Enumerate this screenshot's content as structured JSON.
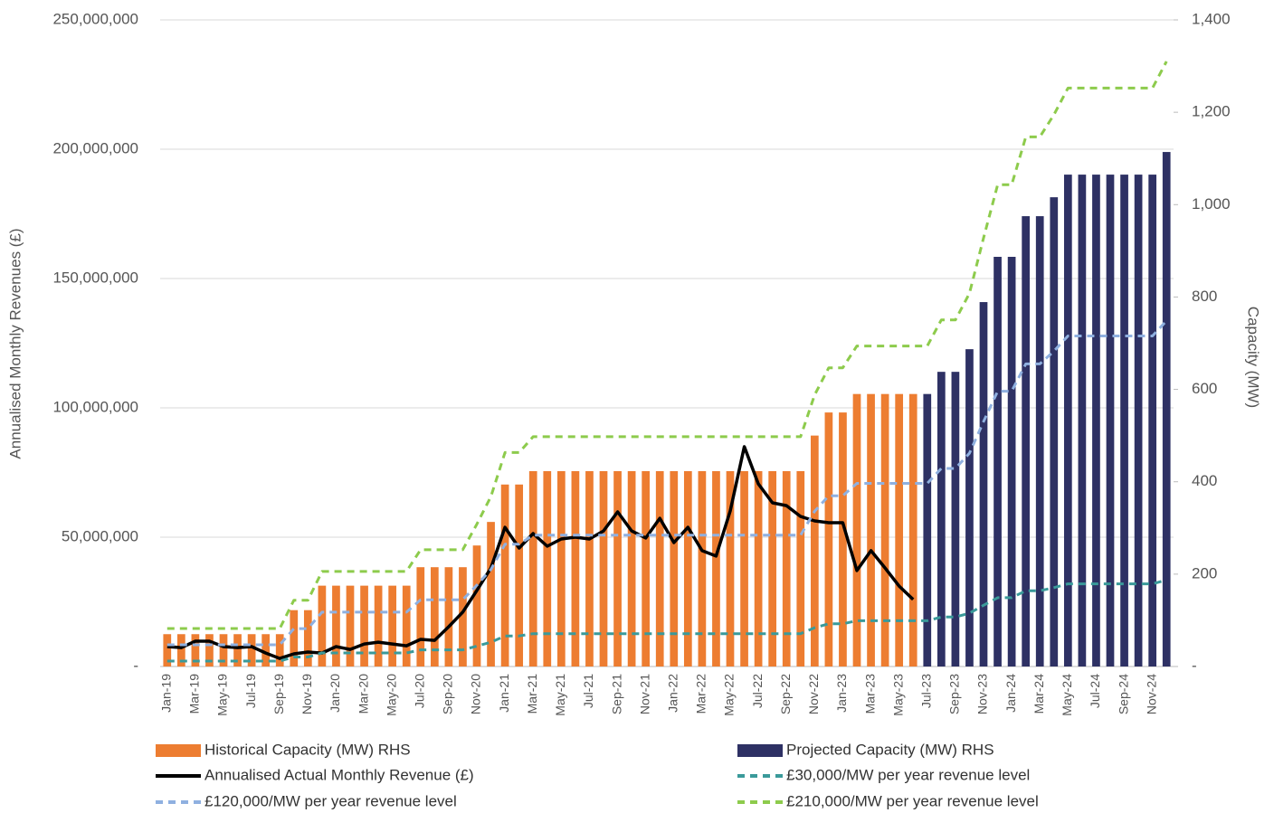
{
  "chart_data": {
    "type": "combo",
    "y_label": "Annualised Monthly Revenues (£)",
    "y2_label": "Capacity (MW)",
    "categories": [
      "Jan-19",
      null,
      "Mar-19",
      null,
      "May-19",
      null,
      "Jul-19",
      null,
      "Sep-19",
      null,
      "Nov-19",
      null,
      "Jan-20",
      null,
      "Mar-20",
      null,
      "May-20",
      null,
      "Jul-20",
      null,
      "Sep-20",
      null,
      "Nov-20",
      null,
      "Jan-21",
      null,
      "Mar-21",
      null,
      "May-21",
      null,
      "Jul-21",
      null,
      "Sep-21",
      null,
      "Nov-21",
      null,
      "Jan-22",
      null,
      "Mar-22",
      null,
      "May-22",
      null,
      "Jul-22",
      null,
      "Sep-22",
      null,
      "Nov-22",
      null,
      "Jan-23",
      null,
      "Mar-23",
      null,
      "May-23",
      null,
      "Jul-23",
      null,
      "Sep-23",
      null,
      "Nov-23",
      null,
      "Jan-24",
      null,
      "Mar-24",
      null,
      "May-24",
      null,
      "Jul-24",
      null,
      "Sep-24",
      null,
      "Nov-24",
      null
    ],
    "ylim": [
      0,
      250000000
    ],
    "yticks": [
      {
        "value": 0,
        "label": "-"
      },
      {
        "value": 50000000,
        "label": "50,000,000"
      },
      {
        "value": 100000000,
        "label": "100,000,000"
      },
      {
        "value": 150000000,
        "label": "150,000,000"
      },
      {
        "value": 200000000,
        "label": "200,000,000"
      },
      {
        "value": 250000000,
        "label": "250,000,000"
      }
    ],
    "y2lim": [
      0,
      1400
    ],
    "y2ticks": [
      {
        "value": 0,
        "label": "-"
      },
      200,
      400,
      600,
      800,
      {
        "value": 1000,
        "label": "1,000"
      },
      {
        "value": 1200,
        "label": "1,200"
      },
      {
        "value": 1400,
        "label": "1,400"
      }
    ],
    "grid": true,
    "legend": "bottom",
    "series": [
      {
        "name": "Historical Capacity (MW) RHS",
        "type": "bar",
        "axis": "y2",
        "color": "#ED7D31",
        "values": [
          70,
          70,
          70,
          70,
          70,
          70,
          70,
          70,
          70,
          122,
          122,
          175,
          175,
          175,
          175,
          175,
          175,
          175,
          215,
          215,
          215,
          215,
          262,
          313,
          394,
          394,
          423,
          423,
          423,
          423,
          423,
          423,
          423,
          423,
          423,
          423,
          423,
          423,
          423,
          423,
          423,
          423,
          423,
          423,
          423,
          423,
          500,
          550,
          550,
          590,
          590,
          590,
          590,
          590,
          null,
          null,
          null,
          null,
          null,
          null,
          null,
          null,
          null,
          null,
          null,
          null,
          null,
          null,
          null,
          null,
          null,
          null
        ]
      },
      {
        "name": "Projected Capacity (MW) RHS",
        "type": "bar",
        "axis": "y2",
        "color": "#2E3164",
        "values": [
          null,
          null,
          null,
          null,
          null,
          null,
          null,
          null,
          null,
          null,
          null,
          null,
          null,
          null,
          null,
          null,
          null,
          null,
          null,
          null,
          null,
          null,
          null,
          null,
          null,
          null,
          null,
          null,
          null,
          null,
          null,
          null,
          null,
          null,
          null,
          null,
          null,
          null,
          null,
          null,
          null,
          null,
          null,
          null,
          null,
          null,
          null,
          null,
          null,
          null,
          null,
          null,
          null,
          null,
          590,
          638,
          638,
          687,
          789,
          887,
          887,
          975,
          975,
          1016,
          1065,
          1065,
          1065,
          1065,
          1065,
          1065,
          1065,
          1114
        ]
      },
      {
        "name": "Annualised Actual Monthly Revenue (£)",
        "type": "line",
        "color": "#000000",
        "dash": false,
        "values": [
          7700000,
          7300000,
          9800000,
          9800000,
          7700000,
          7300000,
          7700000,
          5200000,
          3100000,
          4900000,
          5600000,
          5200000,
          7700000,
          6600000,
          8700000,
          9400000,
          8700000,
          8000000,
          10500000,
          10100000,
          15400000,
          21000000,
          29400000,
          38100000,
          53800000,
          45800000,
          51400000,
          46500000,
          49300000,
          50000000,
          49300000,
          52400000,
          59800000,
          52400000,
          49700000,
          57300000,
          47900000,
          53800000,
          44800000,
          42700000,
          60100000,
          85000000,
          70600000,
          63300000,
          62200000,
          58000000,
          56300000,
          55600000,
          55600000,
          37100000,
          44800000,
          38100000,
          31100000,
          25900000,
          null,
          null,
          null,
          null,
          null,
          null,
          null,
          null,
          null,
          null,
          null,
          null,
          null,
          null,
          null,
          null,
          null,
          null
        ]
      },
      {
        "name": "£30,000/MW per year revenue level",
        "type": "line",
        "color": "#3A9A9A",
        "dash": true,
        "values": [
          2100000,
          2100000,
          2100000,
          2100000,
          2100000,
          2100000,
          2100000,
          2100000,
          2100000,
          3660000,
          3660000,
          5250000,
          5250000,
          5250000,
          5250000,
          5250000,
          5250000,
          5250000,
          6450000,
          6450000,
          6450000,
          6450000,
          7860000,
          9390000,
          11820000,
          11820000,
          12690000,
          12690000,
          12690000,
          12690000,
          12690000,
          12690000,
          12690000,
          12690000,
          12690000,
          12690000,
          12690000,
          12690000,
          12690000,
          12690000,
          12690000,
          12690000,
          12690000,
          12690000,
          12690000,
          12690000,
          15000000,
          16500000,
          16500000,
          17700000,
          17700000,
          17700000,
          17700000,
          17700000,
          17700000,
          19140000,
          19140000,
          20610000,
          23670000,
          26610000,
          26610000,
          29250000,
          29250000,
          30480000,
          31950000,
          31950000,
          31950000,
          31950000,
          31950000,
          31950000,
          31950000,
          33420000
        ]
      },
      {
        "name": "£120,000/MW per year revenue level",
        "type": "line",
        "color": "#8FB0E0",
        "dash": true,
        "values": [
          8400000,
          8400000,
          8400000,
          8400000,
          8400000,
          8400000,
          8400000,
          8400000,
          8400000,
          14640000,
          14640000,
          21000000,
          21000000,
          21000000,
          21000000,
          21000000,
          21000000,
          21000000,
          25800000,
          25800000,
          25800000,
          25800000,
          31440000,
          37560000,
          47280000,
          47280000,
          50760000,
          50760000,
          50760000,
          50760000,
          50760000,
          50760000,
          50760000,
          50760000,
          50760000,
          50760000,
          50760000,
          50760000,
          50760000,
          50760000,
          50760000,
          50760000,
          50760000,
          50760000,
          50760000,
          50760000,
          60000000,
          66000000,
          66000000,
          70800000,
          70800000,
          70800000,
          70800000,
          70800000,
          70800000,
          76560000,
          76560000,
          82440000,
          94680000,
          106440000,
          106440000,
          117000000,
          117000000,
          121920000,
          127800000,
          127800000,
          127800000,
          127800000,
          127800000,
          127800000,
          127800000,
          133680000
        ]
      },
      {
        "name": "£210,000/MW per year revenue level",
        "type": "line",
        "color": "#8DCB4C",
        "dash": true,
        "values": [
          14700000,
          14700000,
          14700000,
          14700000,
          14700000,
          14700000,
          14700000,
          14700000,
          14700000,
          25620000,
          25620000,
          36750000,
          36750000,
          36750000,
          36750000,
          36750000,
          36750000,
          36750000,
          45150000,
          45150000,
          45150000,
          45150000,
          55020000,
          65730000,
          82740000,
          82740000,
          88830000,
          88830000,
          88830000,
          88830000,
          88830000,
          88830000,
          88830000,
          88830000,
          88830000,
          88830000,
          88830000,
          88830000,
          88830000,
          88830000,
          88830000,
          88830000,
          88830000,
          88830000,
          88830000,
          88830000,
          105000000,
          115500000,
          115500000,
          123900000,
          123900000,
          123900000,
          123900000,
          123900000,
          123900000,
          133980000,
          133980000,
          144270000,
          165690000,
          186270000,
          186270000,
          204750000,
          204750000,
          213360000,
          223650000,
          223650000,
          223650000,
          223650000,
          223650000,
          223650000,
          223650000,
          233940000
        ]
      }
    ]
  }
}
